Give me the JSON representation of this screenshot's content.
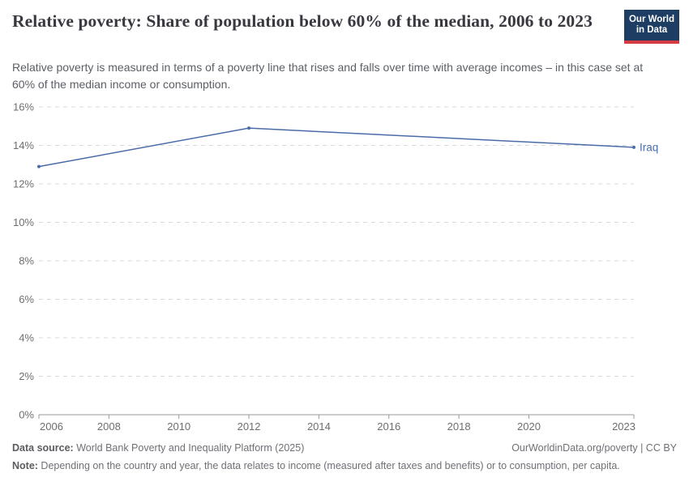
{
  "header": {
    "title": "Relative poverty: Share of population below 60% of the median, 2006 to 2023",
    "subtitle": "Relative poverty is measured in terms of a poverty line that rises and falls over time with average incomes – in this case set at 60% of the median income or consumption.",
    "logo": {
      "line1": "Our World",
      "line2": "in Data",
      "bg_color": "#1d3d63",
      "accent_color": "#d43b42"
    }
  },
  "chart_data": {
    "type": "line",
    "title": "Relative poverty: Share of population below 60% of the median, 2006 to 2023",
    "xlabel": "",
    "ylabel": "",
    "xlim": [
      2006,
      2023
    ],
    "ylim": [
      0,
      16
    ],
    "x_ticks": [
      2006,
      2008,
      2010,
      2012,
      2014,
      2016,
      2018,
      2020,
      2023
    ],
    "y_ticks": [
      0,
      2,
      4,
      6,
      8,
      10,
      12,
      14,
      16
    ],
    "y_suffix": "%",
    "grid": "horizontal-dashed",
    "legend_position": "end-of-line-label",
    "colors": {
      "gridline": "#d9d9d9",
      "axis": "#9a9a9a",
      "tick_label": "#6e6e6e"
    },
    "series": [
      {
        "name": "Iraq",
        "color": "#4a6ba8",
        "x": [
          2006,
          2012,
          2023
        ],
        "values": [
          12.9,
          14.9,
          13.9
        ]
      }
    ]
  },
  "footer": {
    "datasource_label": "Data source:",
    "datasource_text": " World Bank Poverty and Inequality Platform (2025)",
    "note_label": "Note:",
    "note_text": " Depending on the country and year, the data relates to income (measured after taxes and benefits) or to consumption, per capita.",
    "license_text": "OurWorldinData.org/poverty | CC BY"
  }
}
